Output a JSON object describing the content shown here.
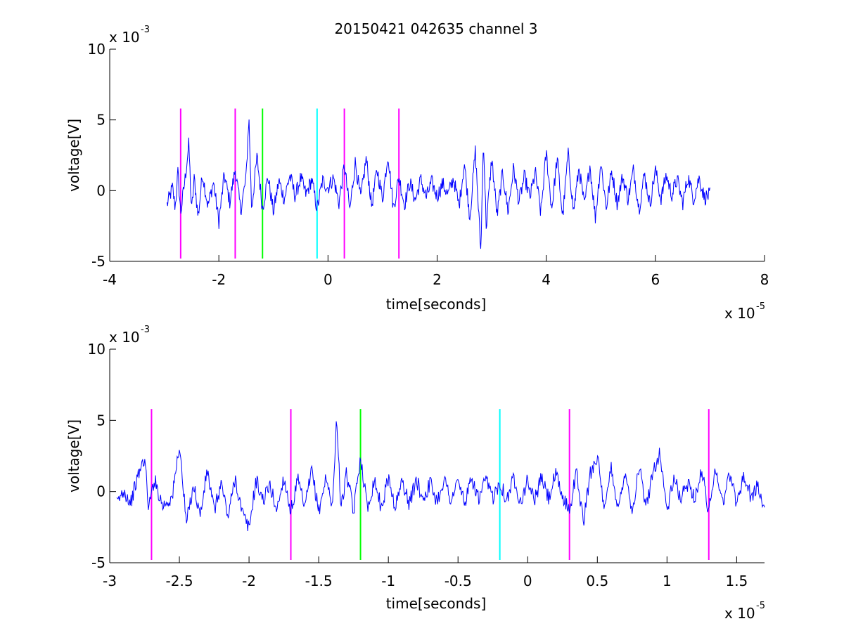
{
  "figure": {
    "title": "20150421 042635 channel 3"
  },
  "chart_data": [
    {
      "type": "line",
      "title": "20150421 042635 channel 3",
      "xlabel": "time[seconds]",
      "ylabel": "voltage[V]",
      "x_exponent_label": "x 10",
      "x_exponent": "-5",
      "y_exponent_label": "x 10",
      "y_exponent": "-3",
      "xlim": [
        -4,
        8
      ],
      "ylim": [
        -5,
        10
      ],
      "xticks": [
        -4,
        -2,
        0,
        2,
        4,
        6,
        8
      ],
      "xtick_labels": [
        "-4",
        "-2",
        "0",
        "2",
        "4",
        "6",
        "8"
      ],
      "yticks": [
        -5,
        0,
        5,
        10
      ],
      "ytick_labels": [
        "-5",
        "0",
        "5",
        "10"
      ],
      "grid": false,
      "series": [
        {
          "color": "#0000ff",
          "x_range": [
            -2.95,
            7.0
          ],
          "points": [
            [
              -2.95,
              -1.0
            ],
            [
              -2.85,
              0.2
            ],
            [
              -2.8,
              -1.2
            ],
            [
              -2.75,
              1.3
            ],
            [
              -2.7,
              -1.6
            ],
            [
              -2.62,
              0.8
            ],
            [
              -2.55,
              3.3
            ],
            [
              -2.5,
              -1.5
            ],
            [
              -2.45,
              0.9
            ],
            [
              -2.38,
              -1.9
            ],
            [
              -2.3,
              1.2
            ],
            [
              -2.2,
              -1.1
            ],
            [
              -2.1,
              0.6
            ],
            [
              -2.0,
              -2.2
            ],
            [
              -1.9,
              1.1
            ],
            [
              -1.8,
              -0.8
            ],
            [
              -1.7,
              1.5
            ],
            [
              -1.6,
              -1.4
            ],
            [
              -1.5,
              0.9
            ],
            [
              -1.45,
              5.3
            ],
            [
              -1.4,
              -1.3
            ],
            [
              -1.3,
              2.4
            ],
            [
              -1.2,
              -1.3
            ],
            [
              -1.1,
              1.0
            ],
            [
              -1.0,
              -1.5
            ],
            [
              -0.9,
              0.7
            ],
            [
              -0.8,
              -0.6
            ],
            [
              -0.7,
              1.1
            ],
            [
              -0.6,
              -0.4
            ],
            [
              -0.5,
              0.9
            ],
            [
              -0.4,
              -0.3
            ],
            [
              -0.3,
              0.8
            ],
            [
              -0.2,
              -1.3
            ],
            [
              -0.1,
              0.7
            ],
            [
              0.0,
              0.2
            ],
            [
              0.1,
              0.9
            ],
            [
              0.2,
              -0.9
            ],
            [
              0.3,
              1.8
            ],
            [
              0.4,
              -1.4
            ],
            [
              0.5,
              2.0
            ],
            [
              0.6,
              -0.6
            ],
            [
              0.7,
              2.3
            ],
            [
              0.8,
              -1.1
            ],
            [
              0.9,
              1.5
            ],
            [
              1.0,
              -0.6
            ],
            [
              1.1,
              2.6
            ],
            [
              1.2,
              -1.3
            ],
            [
              1.3,
              1.0
            ],
            [
              1.4,
              -1.0
            ],
            [
              1.5,
              0.6
            ],
            [
              1.6,
              -0.7
            ],
            [
              1.7,
              0.8
            ],
            [
              1.8,
              -0.5
            ],
            [
              1.9,
              0.6
            ],
            [
              2.0,
              -0.4
            ],
            [
              2.1,
              0.5
            ],
            [
              2.2,
              -0.3
            ],
            [
              2.3,
              0.9
            ],
            [
              2.4,
              -1.1
            ],
            [
              2.5,
              1.9
            ],
            [
              2.6,
              -1.9
            ],
            [
              2.7,
              2.8
            ],
            [
              2.8,
              -4.3
            ],
            [
              2.85,
              3.7
            ],
            [
              2.9,
              -2.6
            ],
            [
              3.0,
              2.3
            ],
            [
              3.1,
              -1.8
            ],
            [
              3.2,
              1.3
            ],
            [
              3.3,
              -1.5
            ],
            [
              3.4,
              1.6
            ],
            [
              3.5,
              -0.8
            ],
            [
              3.6,
              1.0
            ],
            [
              3.7,
              -0.5
            ],
            [
              3.8,
              1.3
            ],
            [
              3.9,
              -1.6
            ],
            [
              4.0,
              2.7
            ],
            [
              4.1,
              -1.3
            ],
            [
              4.2,
              2.3
            ],
            [
              4.3,
              -1.9
            ],
            [
              4.4,
              2.6
            ],
            [
              4.5,
              -1.5
            ],
            [
              4.6,
              1.6
            ],
            [
              4.7,
              -1.1
            ],
            [
              4.8,
              1.8
            ],
            [
              4.9,
              -1.9
            ],
            [
              5.0,
              2.0
            ],
            [
              5.1,
              -1.2
            ],
            [
              5.2,
              1.4
            ],
            [
              5.3,
              -0.9
            ],
            [
              5.4,
              1.0
            ],
            [
              5.5,
              -0.6
            ],
            [
              5.6,
              1.5
            ],
            [
              5.7,
              -1.3
            ],
            [
              5.8,
              1.2
            ],
            [
              5.9,
              -1.0
            ],
            [
              6.0,
              1.5
            ],
            [
              6.1,
              -0.6
            ],
            [
              6.2,
              1.1
            ],
            [
              6.3,
              -0.3
            ],
            [
              6.4,
              0.8
            ],
            [
              6.5,
              -0.9
            ],
            [
              6.6,
              1.0
            ],
            [
              6.7,
              -0.6
            ],
            [
              6.8,
              0.9
            ],
            [
              6.9,
              -0.5
            ],
            [
              7.0,
              -0.3
            ]
          ]
        }
      ],
      "markers": [
        {
          "x": -2.7,
          "color": "#ff00ff"
        },
        {
          "x": -1.7,
          "color": "#ff00ff"
        },
        {
          "x": -1.2,
          "color": "#00ff00"
        },
        {
          "x": -0.2,
          "color": "#00ffff"
        },
        {
          "x": 0.3,
          "color": "#ff00ff"
        },
        {
          "x": 1.3,
          "color": "#ff00ff"
        }
      ],
      "marker_range": [
        -4.8,
        5.8
      ]
    },
    {
      "type": "line",
      "title": "",
      "xlabel": "time[seconds]",
      "ylabel": "voltage[V]",
      "x_exponent_label": "x 10",
      "x_exponent": "-5",
      "y_exponent_label": "x 10",
      "y_exponent": "-3",
      "xlim": [
        -3.0,
        1.7
      ],
      "ylim": [
        -5,
        10
      ],
      "xticks": [
        -3,
        -2.5,
        -2,
        -1.5,
        -1,
        -0.5,
        0,
        0.5,
        1,
        1.5
      ],
      "xtick_labels": [
        "-3",
        "-2.5",
        "-2",
        "-1.5",
        "-1",
        "-0.5",
        "0",
        "0.5",
        "1",
        "1.5"
      ],
      "yticks": [
        -5,
        0,
        5,
        10
      ],
      "ytick_labels": [
        "-5",
        "0",
        "5",
        "10"
      ],
      "grid": false,
      "series": [
        {
          "color": "#0000ff",
          "x_range": [
            -2.95,
            1.7
          ],
          "points": [
            [
              -2.95,
              -0.9
            ],
            [
              -2.9,
              0.1
            ],
            [
              -2.85,
              -0.8
            ],
            [
              -2.8,
              1.0
            ],
            [
              -2.75,
              2.4
            ],
            [
              -2.72,
              -1.2
            ],
            [
              -2.68,
              0.9
            ],
            [
              -2.62,
              -1.0
            ],
            [
              -2.55,
              -0.4
            ],
            [
              -2.5,
              3.3
            ],
            [
              -2.45,
              -2.3
            ],
            [
              -2.4,
              0.5
            ],
            [
              -2.35,
              -1.7
            ],
            [
              -2.3,
              1.5
            ],
            [
              -2.25,
              -1.4
            ],
            [
              -2.2,
              0.6
            ],
            [
              -2.15,
              -1.8
            ],
            [
              -2.1,
              1.0
            ],
            [
              -2.05,
              -1.5
            ],
            [
              -2.0,
              -2.6
            ],
            [
              -1.95,
              0.8
            ],
            [
              -1.9,
              -0.6
            ],
            [
              -1.85,
              0.4
            ],
            [
              -1.8,
              -1.3
            ],
            [
              -1.75,
              1.0
            ],
            [
              -1.7,
              -1.4
            ],
            [
              -1.65,
              0.8
            ],
            [
              -1.6,
              -1.2
            ],
            [
              -1.55,
              1.5
            ],
            [
              -1.5,
              -1.4
            ],
            [
              -1.45,
              0.9
            ],
            [
              -1.4,
              -0.9
            ],
            [
              -1.37,
              5.3
            ],
            [
              -1.34,
              -1.3
            ],
            [
              -1.3,
              1.3
            ],
            [
              -1.25,
              -1.5
            ],
            [
              -1.2,
              2.5
            ],
            [
              -1.15,
              -1.2
            ],
            [
              -1.1,
              0.9
            ],
            [
              -1.05,
              -1.2
            ],
            [
              -1.0,
              1.0
            ],
            [
              -0.95,
              -1.1
            ],
            [
              -0.9,
              0.8
            ],
            [
              -0.85,
              -0.9
            ],
            [
              -0.8,
              0.8
            ],
            [
              -0.75,
              -0.5
            ],
            [
              -0.7,
              0.6
            ],
            [
              -0.65,
              -0.7
            ],
            [
              -0.6,
              0.9
            ],
            [
              -0.55,
              -0.6
            ],
            [
              -0.5,
              0.7
            ],
            [
              -0.45,
              -0.8
            ],
            [
              -0.4,
              0.9
            ],
            [
              -0.35,
              -0.6
            ],
            [
              -0.3,
              0.8
            ],
            [
              -0.25,
              -0.4
            ],
            [
              -0.2,
              0.7
            ],
            [
              -0.15,
              -0.6
            ],
            [
              -0.1,
              1.0
            ],
            [
              -0.05,
              -0.7
            ],
            [
              0.0,
              0.8
            ],
            [
              0.05,
              -0.6
            ],
            [
              0.1,
              1.0
            ],
            [
              0.15,
              -0.5
            ],
            [
              0.2,
              1.2
            ],
            [
              0.25,
              -0.4
            ],
            [
              0.3,
              -1.3
            ],
            [
              0.35,
              1.4
            ],
            [
              0.4,
              -2.2
            ],
            [
              0.45,
              1.3
            ],
            [
              0.5,
              2.6
            ],
            [
              0.55,
              -1.6
            ],
            [
              0.6,
              1.8
            ],
            [
              0.65,
              -1.4
            ],
            [
              0.7,
              1.6
            ],
            [
              0.75,
              -1.5
            ],
            [
              0.8,
              1.8
            ],
            [
              0.85,
              -1.2
            ],
            [
              0.9,
              1.5
            ],
            [
              0.95,
              2.7
            ],
            [
              1.0,
              -1.4
            ],
            [
              1.05,
              0.9
            ],
            [
              1.1,
              -0.5
            ],
            [
              1.15,
              0.6
            ],
            [
              1.2,
              -0.4
            ],
            [
              1.25,
              1.4
            ],
            [
              1.3,
              -1.4
            ],
            [
              1.35,
              1.8
            ],
            [
              1.4,
              -0.9
            ],
            [
              1.45,
              1.3
            ],
            [
              1.5,
              -0.8
            ],
            [
              1.55,
              1.1
            ],
            [
              1.6,
              -0.3
            ],
            [
              1.65,
              0.3
            ],
            [
              1.7,
              -1.2
            ]
          ]
        }
      ],
      "markers": [
        {
          "x": -2.7,
          "color": "#ff00ff"
        },
        {
          "x": -1.7,
          "color": "#ff00ff"
        },
        {
          "x": -1.2,
          "color": "#00ff00"
        },
        {
          "x": -0.2,
          "color": "#00ffff"
        },
        {
          "x": 0.3,
          "color": "#ff00ff"
        },
        {
          "x": 1.3,
          "color": "#ff00ff"
        }
      ],
      "marker_range": [
        -4.8,
        5.8
      ]
    }
  ]
}
